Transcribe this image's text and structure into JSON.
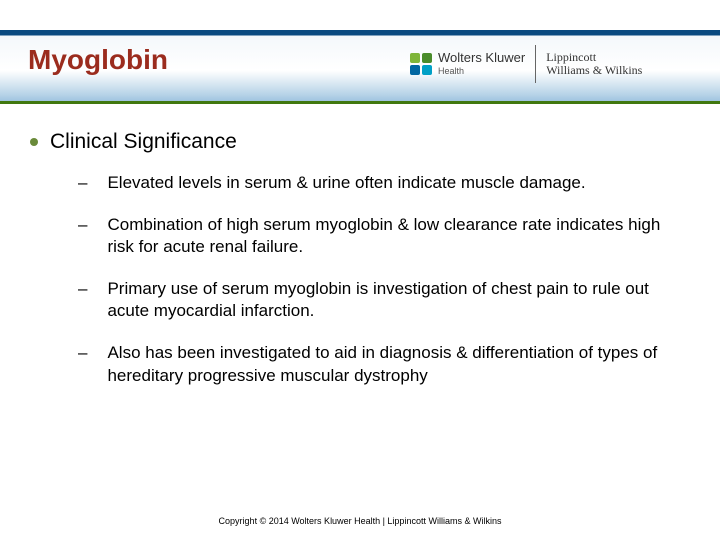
{
  "colors": {
    "title": "#9b2c1e",
    "header_top_border": "#0a4a80",
    "header_bottom_border": "#41780f",
    "bullet_dot": "#6a8a3a",
    "text": "#000000",
    "background": "#ffffff"
  },
  "header": {
    "title": "Myoglobin",
    "logo": {
      "wk_line1": "Wolters Kluwer",
      "wk_line2": "Health",
      "lww_line1": "Lippincott",
      "lww_line2": "Williams & Wilkins"
    }
  },
  "content": {
    "main_bullet": "Clinical Significance",
    "sub_bullets": [
      "Elevated levels in serum & urine often indicate muscle damage.",
      "Combination of high serum myoglobin & low clearance rate indicates high risk for acute renal failure.",
      "Primary use of serum myoglobin is investigation of chest pain to rule out acute myocardial infarction.",
      "Also has been investigated to aid in diagnosis & differentiation of types of hereditary progressive muscular dystrophy"
    ]
  },
  "footer": "Copyright © 2014 Wolters Kluwer Health | Lippincott Williams & Wilkins"
}
